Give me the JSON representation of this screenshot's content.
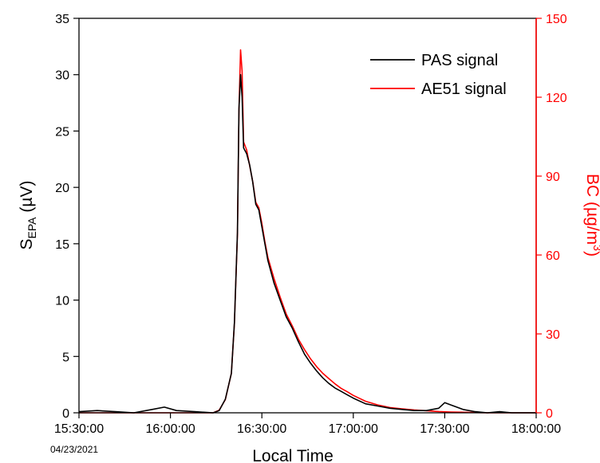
{
  "chart_data": {
    "type": "line",
    "date_label": "04/23/2021",
    "xlabel": "Local Time",
    "x_ticks": [
      "15:30:00",
      "16:00:00",
      "16:30:00",
      "17:00:00",
      "17:30:00",
      "18:00:00"
    ],
    "xlim": [
      "15:30:00",
      "18:00:00"
    ],
    "ylabel_left": {
      "main": "S",
      "sub": "EPA",
      "rest": " (µV)"
    },
    "ylim_left": [
      0,
      35
    ],
    "yticks_left": [
      0,
      5,
      10,
      15,
      20,
      25,
      30,
      35
    ],
    "ylabel_right": {
      "main": "BC (µg/m",
      "sup": "3",
      "rest": ")"
    },
    "ylim_right": [
      0,
      150
    ],
    "yticks_right": [
      0,
      30,
      60,
      90,
      120,
      150
    ],
    "right_axis_color": "#ff0000",
    "grid": false,
    "legend_position": "top-right",
    "series": [
      {
        "name": "PAS signal",
        "color": "#000000",
        "axis": "left",
        "x": [
          "15:30:00",
          "15:36:00",
          "15:42:00",
          "15:48:00",
          "15:54:00",
          "15:58:00",
          "16:02:00",
          "16:08:00",
          "16:14:00",
          "16:16:00",
          "16:18:00",
          "16:20:00",
          "16:21:00",
          "16:22:00",
          "16:22:30",
          "16:23:00",
          "16:23:30",
          "16:24:00",
          "16:25:00",
          "16:26:00",
          "16:27:00",
          "16:28:00",
          "16:29:00",
          "16:30:00",
          "16:31:00",
          "16:32:00",
          "16:34:00",
          "16:36:00",
          "16:38:00",
          "16:40:00",
          "16:42:00",
          "16:44:00",
          "16:46:00",
          "16:48:00",
          "16:50:00",
          "16:52:00",
          "16:54:00",
          "16:56:00",
          "16:58:00",
          "17:00:00",
          "17:04:00",
          "17:08:00",
          "17:12:00",
          "17:16:00",
          "17:20:00",
          "17:24:00",
          "17:28:00",
          "17:30:00",
          "17:32:00",
          "17:36:00",
          "17:40:00",
          "17:44:00",
          "17:48:00",
          "17:52:00",
          "17:56:00",
          "18:00:00"
        ],
        "y": [
          0.1,
          0.2,
          0.1,
          0.0,
          0.3,
          0.5,
          0.2,
          0.1,
          0.0,
          0.2,
          1.2,
          3.5,
          8.0,
          16.0,
          27.0,
          30.0,
          28.0,
          23.5,
          23.0,
          22.0,
          20.5,
          18.5,
          18.0,
          16.5,
          15.0,
          13.5,
          11.5,
          10.0,
          8.5,
          7.5,
          6.3,
          5.2,
          4.4,
          3.7,
          3.1,
          2.6,
          2.2,
          1.9,
          1.6,
          1.3,
          0.8,
          0.6,
          0.4,
          0.3,
          0.2,
          0.2,
          0.4,
          0.9,
          0.7,
          0.3,
          0.1,
          0.0,
          0.1,
          0.0,
          0.0,
          0.0
        ]
      },
      {
        "name": "AE51 signal",
        "color": "#ff0000",
        "axis": "right",
        "x": [
          "15:30:00",
          "16:14:00",
          "16:16:00",
          "16:18:00",
          "16:20:00",
          "16:21:00",
          "16:22:00",
          "16:22:30",
          "16:23:00",
          "16:23:30",
          "16:24:00",
          "16:25:00",
          "16:26:00",
          "16:27:00",
          "16:28:00",
          "16:29:00",
          "16:30:00",
          "16:31:00",
          "16:32:00",
          "16:34:00",
          "16:36:00",
          "16:38:00",
          "16:40:00",
          "16:42:00",
          "16:44:00",
          "16:46:00",
          "16:48:00",
          "16:50:00",
          "16:52:00",
          "16:54:00",
          "16:56:00",
          "16:58:00",
          "17:00:00",
          "17:04:00",
          "17:08:00",
          "17:12:00",
          "17:16:00",
          "17:20:00",
          "17:24:00",
          "17:28:00",
          "17:32:00",
          "17:36:00",
          "17:40:00",
          "17:44:00",
          "18:00:00"
        ],
        "y": [
          0,
          0,
          1,
          5,
          15,
          34,
          68,
          115,
          138,
          130,
          103,
          100,
          94,
          88,
          80,
          78,
          72,
          65,
          59,
          51,
          44,
          37.5,
          33,
          28,
          24,
          20.5,
          17.5,
          15,
          13,
          11,
          9.3,
          8,
          6.6,
          4.4,
          3,
          2,
          1.5,
          1.1,
          0.8,
          0.5,
          0.3,
          0.2,
          0.1,
          0,
          0
        ]
      }
    ]
  }
}
